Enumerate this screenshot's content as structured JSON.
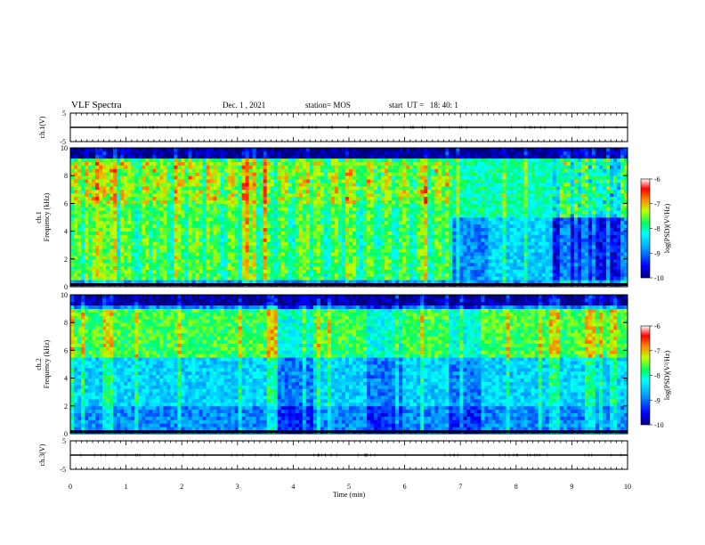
{
  "header": {
    "title": "VLF Spectra",
    "date": "Dec. 1 , 2021",
    "station": "station= MOS",
    "start": "start  UT =   18: 40: 1"
  },
  "chart_data": [
    {
      "type": "line",
      "name": "ch1",
      "ylabel": "ch.1(V)",
      "ylim": [
        -5,
        5
      ],
      "yticks": [
        "5",
        "-5"
      ],
      "x": [
        0,
        10
      ],
      "values": [
        0,
        0
      ]
    },
    {
      "type": "heatmap",
      "name": "ch1-spectrogram",
      "ylabel": "ch.1\nFrequency (kHz)",
      "ylim": [
        0,
        10
      ],
      "yticks": [
        "0",
        "2",
        "4",
        "6",
        "8",
        "10"
      ],
      "xlim": [
        0,
        10
      ],
      "colorbar": {
        "label": "log(PSD)(V²/Hz)",
        "ticks": [
          "-6",
          "-7",
          "-8",
          "-9",
          "-10"
        ],
        "range": [
          -10,
          -6
        ]
      }
    },
    {
      "type": "heatmap",
      "name": "ch2-spectrogram",
      "ylabel": "ch.2\nFrequency (kHz)",
      "ylim": [
        0,
        10
      ],
      "yticks": [
        "0",
        "2",
        "4",
        "6",
        "8",
        "10"
      ],
      "xlim": [
        0,
        10
      ],
      "colorbar": {
        "label": "log(PSD)(V²/Hz)",
        "ticks": [
          "-6",
          "-7",
          "-8",
          "-9",
          "-10"
        ],
        "range": [
          -10,
          -6
        ]
      }
    },
    {
      "type": "line",
      "name": "ch3",
      "ylabel": "ch.3(V)",
      "ylim": [
        -5,
        5
      ],
      "yticks": [
        "5",
        "-5"
      ],
      "x": [
        0,
        10
      ],
      "values": [
        0,
        0
      ]
    }
  ],
  "xaxis": {
    "label": "Time  (min)",
    "ticks": [
      "0",
      "1",
      "2",
      "3",
      "4",
      "5",
      "6",
      "7",
      "8",
      "9",
      "10"
    ]
  }
}
